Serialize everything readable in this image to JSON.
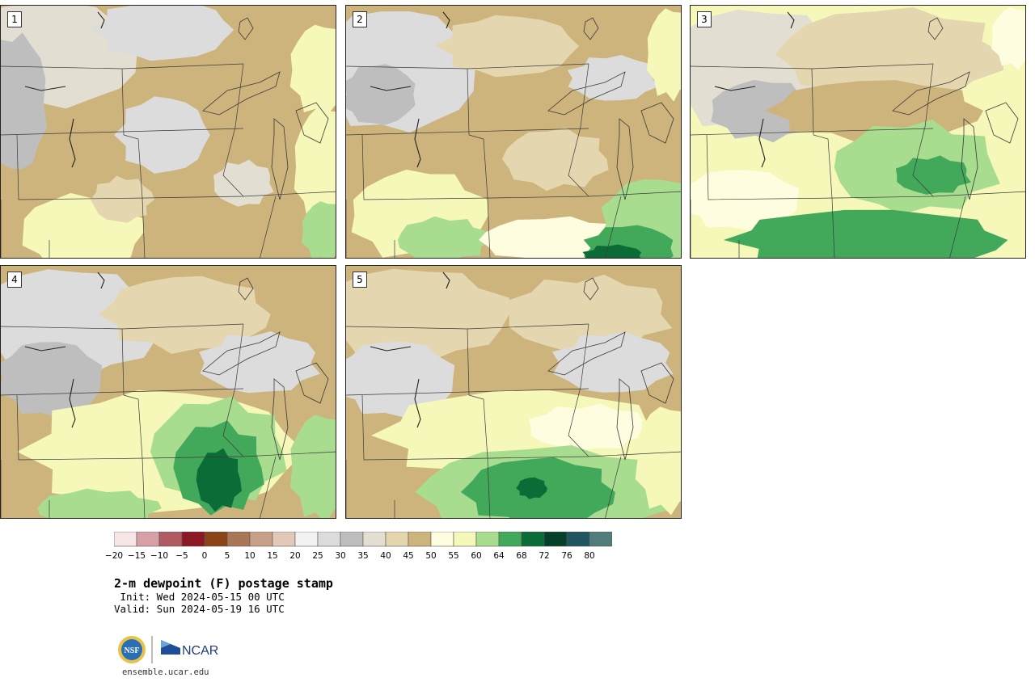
{
  "panels": [
    {
      "label": "1",
      "theme": "dry"
    },
    {
      "label": "2",
      "theme": "dry_se_green"
    },
    {
      "label": "3",
      "theme": "moist_east"
    },
    {
      "label": "4",
      "theme": "moist_south"
    },
    {
      "label": "5",
      "theme": "moist_south_light"
    }
  ],
  "colorbar": {
    "ticks": [
      "−20",
      "−15",
      "−10",
      "−5",
      "0",
      "5",
      "10",
      "15",
      "20",
      "25",
      "30",
      "35",
      "40",
      "45",
      "50",
      "55",
      "60",
      "64",
      "68",
      "72",
      "76",
      "80"
    ],
    "colors": [
      "#f6e6e6",
      "#d6a0a6",
      "#b05a62",
      "#8b1822",
      "#8b4418",
      "#a97656",
      "#c8a08a",
      "#e3c8b8",
      "#f2f2f2",
      "#dcdcdc",
      "#bebebe",
      "#e2dfd2",
      "#e4d6ae",
      "#cdb37c",
      "#fefde0",
      "#f5f8b8",
      "#a8dc8e",
      "#42a85a",
      "#0b6c38",
      "#07402a",
      "#1e5560",
      "#527b7c"
    ]
  },
  "title": "2-m dewpoint (F) postage stamp",
  "init": " Init: Wed 2024-05-15 00 UTC",
  "valid": "Valid: Sun 2024-05-19 16 UTC",
  "logos": {
    "nsf": "NSF",
    "ncar": "NCAR"
  },
  "site": "ensemble.ucar.edu"
}
